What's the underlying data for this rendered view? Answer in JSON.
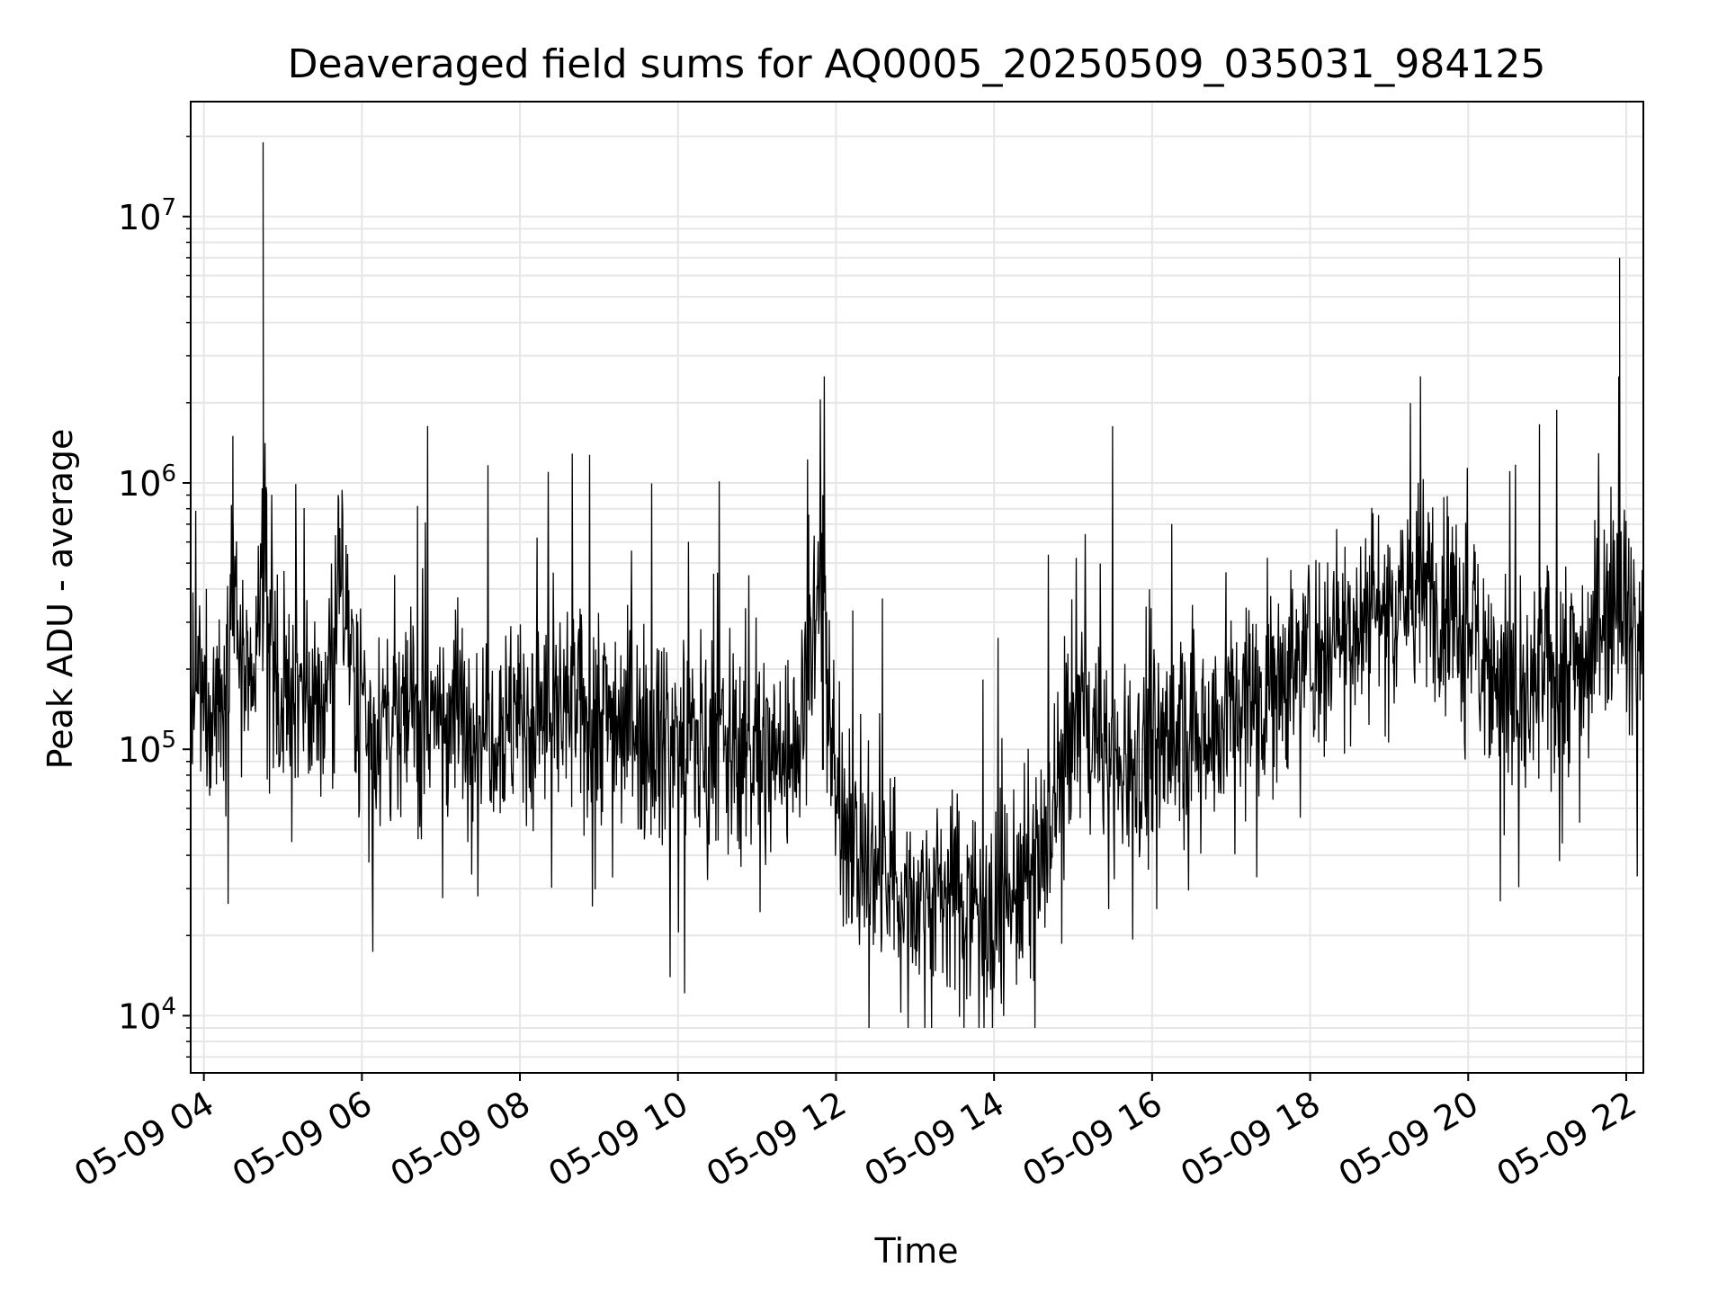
{
  "chart_data": {
    "type": "line",
    "title": "Deaveraged field sums for AQ0005_20250509_035031_984125",
    "xlabel": "Time",
    "ylabel": "Peak ADU - average",
    "y_scale": "log",
    "grid": true,
    "line_color": "#000000",
    "grid_color": "#e6e6e6",
    "xlim": [
      "2025-05-09 03:50",
      "2025-05-09 22:13"
    ],
    "ylim": [
      6100,
      27000000
    ],
    "x_tick_labels": [
      "05-09 04",
      "05-09 06",
      "05-09 08",
      "05-09 10",
      "05-09 12",
      "05-09 14",
      "05-09 16",
      "05-09 18",
      "05-09 20",
      "05-09 22"
    ],
    "y_tick_labels": [
      {
        "base": "10",
        "exp": "4"
      },
      {
        "base": "10",
        "exp": "5"
      },
      {
        "base": "10",
        "exp": "6"
      },
      {
        "base": "10",
        "exp": "7"
      }
    ],
    "series": [
      {
        "values_note_hidden": "",
        "x": [
          "2025-05-09 03:50",
          "2025-05-09 04:00",
          "2025-05-09 04:15",
          "2025-05-09 04:22",
          "2025-05-09 04:30",
          "2025-05-09 04:38",
          "2025-05-09 04:45",
          "2025-05-09 05:00",
          "2025-05-09 05:15",
          "2025-05-09 05:30",
          "2025-05-09 05:42",
          "2025-05-09 06:00",
          "2025-05-09 06:20",
          "2025-05-09 06:40",
          "2025-05-09 07:00",
          "2025-05-09 07:20",
          "2025-05-09 07:40",
          "2025-05-09 08:00",
          "2025-05-09 08:30",
          "2025-05-09 09:00",
          "2025-05-09 09:30",
          "2025-05-09 10:00",
          "2025-05-09 10:30",
          "2025-05-09 11:00",
          "2025-05-09 11:30",
          "2025-05-09 11:50",
          "2025-05-09 12:00",
          "2025-05-09 12:20",
          "2025-05-09 12:40",
          "2025-05-09 13:00",
          "2025-05-09 13:20",
          "2025-05-09 13:40",
          "2025-05-09 14:00",
          "2025-05-09 14:20",
          "2025-05-09 14:40",
          "2025-05-09 15:00",
          "2025-05-09 15:30",
          "2025-05-09 16:00",
          "2025-05-09 16:30",
          "2025-05-09 17:00",
          "2025-05-09 17:30",
          "2025-05-09 18:00",
          "2025-05-09 18:30",
          "2025-05-09 19:00",
          "2025-05-09 19:30",
          "2025-05-09 20:00",
          "2025-05-09 20:20",
          "2025-05-09 20:40",
          "2025-05-09 21:00",
          "2025-05-09 21:30",
          "2025-05-09 21:55",
          "2025-05-09 22:05",
          "2025-05-09 22:13"
        ],
        "values": [
          150000,
          150000,
          160000,
          1500000,
          150000,
          160000,
          19000000,
          150000,
          140000,
          140000,
          900000,
          135000,
          130000,
          135000,
          140000,
          135000,
          130000,
          130000,
          135000,
          140000,
          125000,
          110000,
          105000,
          95000,
          100000,
          900000,
          60000,
          40000,
          30000,
          28000,
          30000,
          28000,
          25000,
          30000,
          40000,
          140000,
          90000,
          100000,
          115000,
          140000,
          180000,
          230000,
          300000,
          370000,
          400000,
          300000,
          200000,
          130000,
          200000,
          220000,
          7000000,
          250000,
          300000
        ]
      }
    ]
  }
}
